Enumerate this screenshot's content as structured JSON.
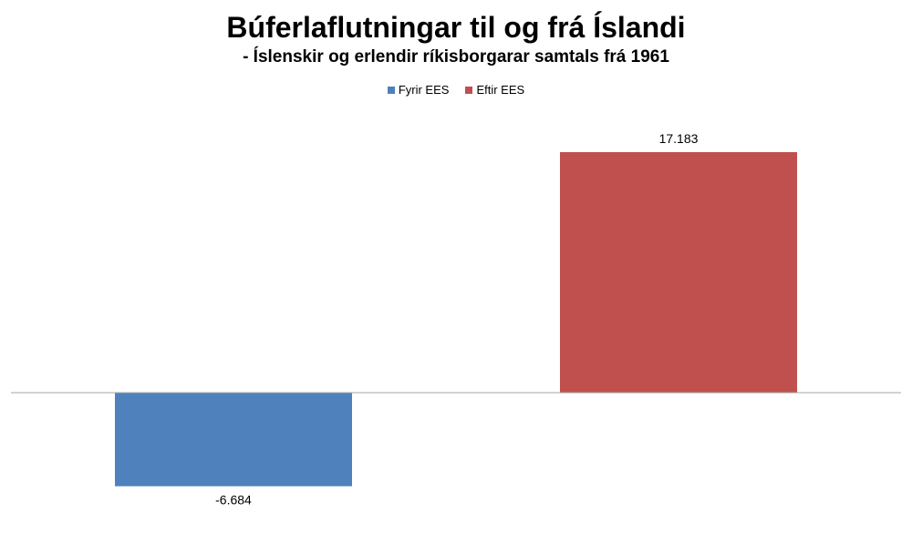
{
  "chart_data": {
    "type": "bar",
    "title": "Búferlaflutningar til og frá Íslandi",
    "subtitle": "- Íslenskir og erlendir ríkisborgarar samtals frá 1961",
    "xlabel": "",
    "ylabel": "",
    "grid": false,
    "legend_position": "top",
    "categories": [
      "Fyrir EES",
      "Eftir EES"
    ],
    "values": [
      -6684,
      17183
    ],
    "value_labels": [
      "-6.684",
      "17.183"
    ],
    "colors": [
      "#4F81BD",
      "#C0504D"
    ],
    "axis_color": "#A6A6A6",
    "ylim": [
      -7500,
      18600
    ]
  }
}
